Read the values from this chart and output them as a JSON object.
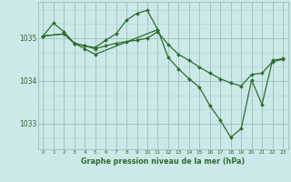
{
  "background_color": "#cce8e8",
  "grid_color_major": "#9bbfbf",
  "grid_color_minor": "#b0d4d4",
  "line_color": "#2d6e2d",
  "title": "Graphe pression niveau de la mer (hPa)",
  "xlim": [
    -0.5,
    23.5
  ],
  "ylim": [
    1032.4,
    1035.85
  ],
  "yticks": [
    1033,
    1034,
    1035
  ],
  "xticks": [
    0,
    1,
    2,
    3,
    4,
    5,
    6,
    7,
    8,
    9,
    10,
    11,
    12,
    13,
    14,
    15,
    16,
    17,
    18,
    19,
    20,
    21,
    22,
    23
  ],
  "series": [
    {
      "x": [
        0,
        1,
        2,
        3,
        4,
        5,
        6,
        7,
        8,
        9,
        10,
        11
      ],
      "y": [
        1035.05,
        1035.35,
        1035.15,
        1034.88,
        1034.82,
        1034.78,
        1034.95,
        1035.1,
        1035.42,
        1035.58,
        1035.65,
        1035.2
      ]
    },
    {
      "x": [
        0,
        2,
        3,
        4,
        5,
        6,
        7,
        8,
        9,
        10,
        11,
        12,
        13,
        14,
        15,
        16,
        17,
        18,
        19,
        20,
        21,
        22,
        23
      ],
      "y": [
        1035.05,
        1035.1,
        1034.88,
        1034.82,
        1034.75,
        1034.82,
        1034.88,
        1034.92,
        1034.95,
        1035.0,
        1035.15,
        1034.85,
        1034.62,
        1034.48,
        1034.32,
        1034.18,
        1034.05,
        1033.95,
        1033.88,
        1034.15,
        1034.18,
        1034.45,
        1034.5
      ]
    },
    {
      "x": [
        0,
        2,
        3,
        4,
        5,
        11,
        12,
        13,
        14,
        15,
        16,
        17,
        18,
        19,
        20,
        21,
        22,
        23
      ],
      "y": [
        1035.05,
        1035.1,
        1034.88,
        1034.75,
        1034.62,
        1035.2,
        1034.55,
        1034.28,
        1034.05,
        1033.85,
        1033.42,
        1033.08,
        1032.68,
        1032.88,
        1034.02,
        1033.45,
        1034.48,
        1034.52
      ]
    }
  ]
}
